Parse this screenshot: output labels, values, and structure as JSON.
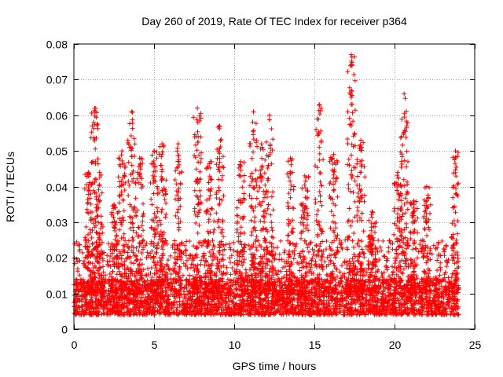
{
  "chart_data": {
    "type": "scatter",
    "title": "Day 260 of 2019, Rate Of TEC Index for receiver p364",
    "xlabel": "GPS time / hours",
    "ylabel": "ROTI / TECUs",
    "xlim": [
      0,
      25
    ],
    "ylim": [
      0,
      0.08
    ],
    "xticks": [
      0,
      5,
      10,
      15,
      20,
      25
    ],
    "yticks": [
      0,
      0.01,
      0.02,
      0.03,
      0.04,
      0.05,
      0.06,
      0.07,
      0.08
    ],
    "xtick_labels": [
      "0",
      "5",
      "10",
      "15",
      "20",
      "25"
    ],
    "ytick_labels": [
      "0",
      "0.01",
      "0.02",
      "0.03",
      "0.04",
      "0.05",
      "0.06",
      "0.07",
      "0.08"
    ],
    "grid": true,
    "marker": "+",
    "series": [
      {
        "name": "p364",
        "color": "#ff0000",
        "x_range": [
          0,
          24
        ],
        "baseline_min": 0.004,
        "baseline_typical": 0.01,
        "bulk_max": 0.025,
        "peaks": [
          {
            "x": 0.9,
            "y": 0.044
          },
          {
            "x": 1.3,
            "y": 0.062
          },
          {
            "x": 1.6,
            "y": 0.044
          },
          {
            "x": 2.5,
            "y": 0.035
          },
          {
            "x": 3.0,
            "y": 0.05
          },
          {
            "x": 3.6,
            "y": 0.061
          },
          {
            "x": 4.1,
            "y": 0.048
          },
          {
            "x": 5.0,
            "y": 0.05
          },
          {
            "x": 5.5,
            "y": 0.052
          },
          {
            "x": 6.5,
            "y": 0.052
          },
          {
            "x": 7.7,
            "y": 0.062
          },
          {
            "x": 8.5,
            "y": 0.047
          },
          {
            "x": 9.1,
            "y": 0.057
          },
          {
            "x": 10.4,
            "y": 0.047
          },
          {
            "x": 11.2,
            "y": 0.061
          },
          {
            "x": 11.7,
            "y": 0.052
          },
          {
            "x": 12.2,
            "y": 0.06
          },
          {
            "x": 13.5,
            "y": 0.048
          },
          {
            "x": 14.4,
            "y": 0.043
          },
          {
            "x": 15.3,
            "y": 0.063
          },
          {
            "x": 16.2,
            "y": 0.049
          },
          {
            "x": 17.3,
            "y": 0.077
          },
          {
            "x": 17.9,
            "y": 0.053
          },
          {
            "x": 18.6,
            "y": 0.033
          },
          {
            "x": 20.2,
            "y": 0.044
          },
          {
            "x": 20.6,
            "y": 0.066
          },
          {
            "x": 21.2,
            "y": 0.036
          },
          {
            "x": 22.0,
            "y": 0.04
          },
          {
            "x": 23.8,
            "y": 0.05
          }
        ]
      }
    ]
  }
}
